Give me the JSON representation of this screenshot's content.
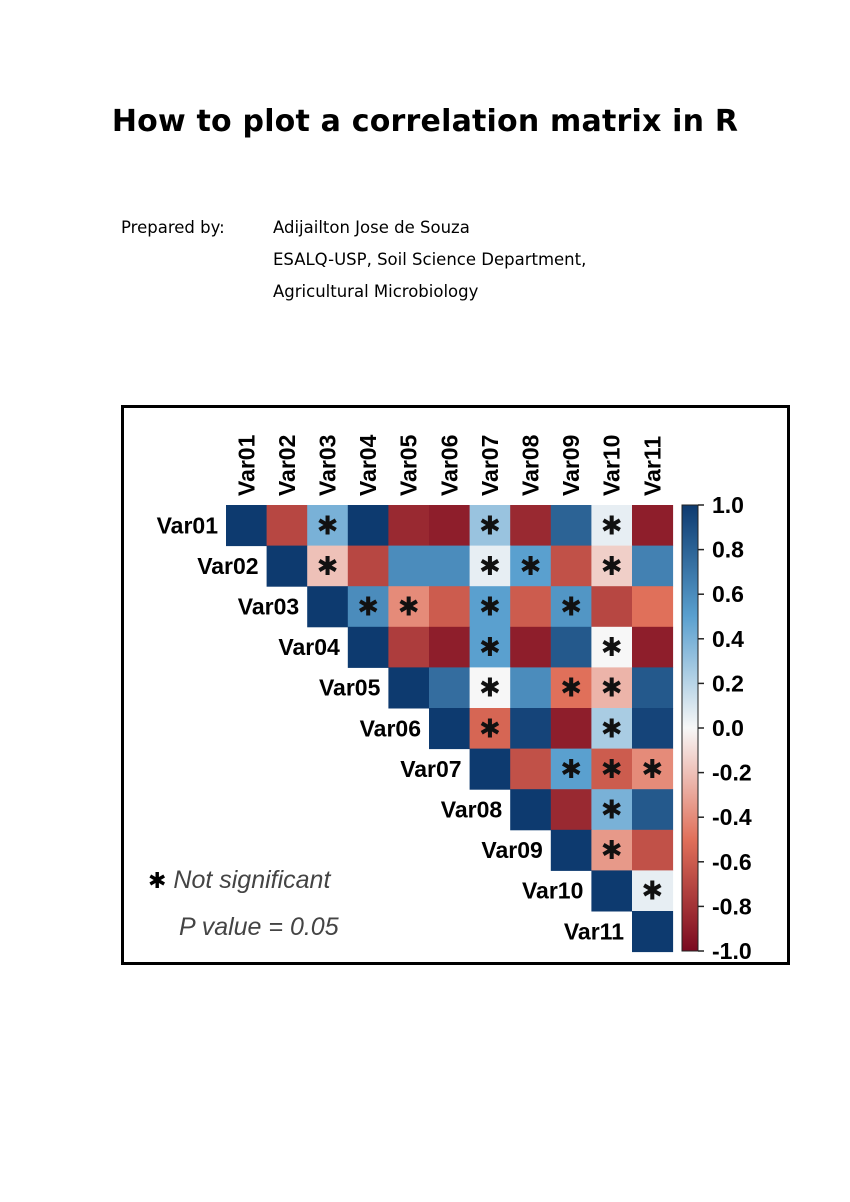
{
  "document": {
    "title": "How to plot a correlation matrix in R",
    "prepared_by_label": "Prepared by:",
    "author_lines": [
      "Adijailton Jose de Souza",
      "ESALQ-USP, Soil Science Department,",
      "Agricultural Microbiology"
    ]
  },
  "chart_data": {
    "type": "heatmap",
    "variables": [
      "Var01",
      "Var02",
      "Var03",
      "Var04",
      "Var05",
      "Var06",
      "Var07",
      "Var08",
      "Var09",
      "Var10",
      "Var11"
    ],
    "layout": "upper-triangle",
    "values": [
      [
        1.0,
        -0.7,
        0.4,
        1.0,
        -0.85,
        -0.9,
        0.3,
        -0.85,
        0.8,
        0.05,
        -0.9
      ],
      [
        null,
        1.0,
        -0.2,
        -0.7,
        0.6,
        0.6,
        0.05,
        0.5,
        -0.65,
        -0.15,
        0.65
      ],
      [
        null,
        null,
        1.0,
        0.6,
        -0.4,
        -0.6,
        0.5,
        -0.6,
        0.55,
        -0.7,
        -0.5
      ],
      [
        null,
        null,
        null,
        1.0,
        -0.75,
        -0.9,
        0.5,
        -0.9,
        0.85,
        0.0,
        -0.9
      ],
      [
        null,
        null,
        null,
        null,
        1.0,
        0.75,
        0.0,
        0.6,
        -0.5,
        -0.25,
        0.85
      ],
      [
        null,
        null,
        null,
        null,
        null,
        1.0,
        -0.55,
        0.95,
        -0.9,
        0.25,
        0.95
      ],
      [
        null,
        null,
        null,
        null,
        null,
        null,
        1.0,
        -0.65,
        0.5,
        -0.6,
        -0.4
      ],
      [
        null,
        null,
        null,
        null,
        null,
        null,
        null,
        1.0,
        -0.85,
        0.4,
        0.85
      ],
      [
        null,
        null,
        null,
        null,
        null,
        null,
        null,
        null,
        1.0,
        -0.35,
        -0.65
      ],
      [
        null,
        null,
        null,
        null,
        null,
        null,
        null,
        null,
        null,
        1.0,
        0.05
      ],
      [
        null,
        null,
        null,
        null,
        null,
        null,
        null,
        null,
        null,
        null,
        1.0
      ]
    ],
    "not_significant": [
      [
        0,
        2
      ],
      [
        0,
        6
      ],
      [
        0,
        9
      ],
      [
        1,
        2
      ],
      [
        1,
        6
      ],
      [
        1,
        7
      ],
      [
        1,
        9
      ],
      [
        2,
        3
      ],
      [
        2,
        4
      ],
      [
        2,
        6
      ],
      [
        2,
        8
      ],
      [
        3,
        6
      ],
      [
        3,
        9
      ],
      [
        4,
        6
      ],
      [
        4,
        8
      ],
      [
        4,
        9
      ],
      [
        5,
        6
      ],
      [
        5,
        9
      ],
      [
        6,
        8
      ],
      [
        6,
        9
      ],
      [
        6,
        10
      ],
      [
        7,
        9
      ],
      [
        8,
        9
      ],
      [
        9,
        10
      ]
    ],
    "colorbar": {
      "range": [
        -1.0,
        1.0
      ],
      "ticks": [
        "1.0",
        "0.8",
        "0.6",
        "0.4",
        "0.2",
        "0.0",
        "-0.2",
        "-0.4",
        "-0.6",
        "-0.8",
        "-1.0"
      ],
      "colors": {
        "negative": "#7a0a1f",
        "mid_neg": "#e0705a",
        "zero": "#f7f7f7",
        "mid_pos": "#5aa0cf",
        "positive": "#0d3a6f"
      }
    },
    "legend": {
      "symbol": "✱",
      "line1": "Not significant",
      "line2": "P value = 0.05"
    }
  }
}
